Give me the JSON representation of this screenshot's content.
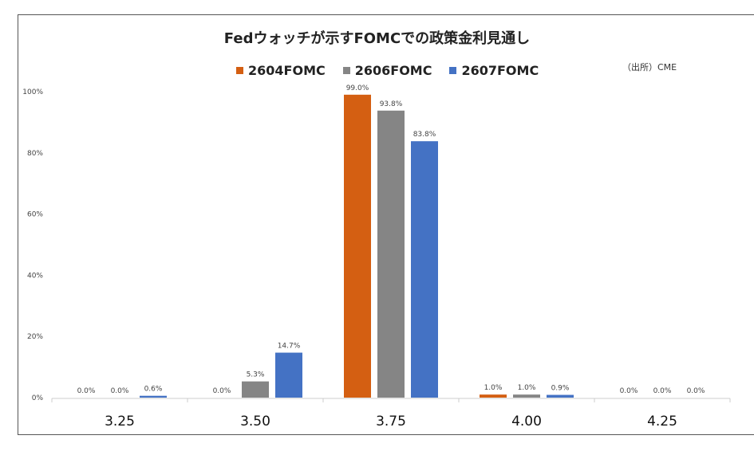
{
  "chart_data": {
    "type": "bar",
    "title": "Fedウォッチが示すFOMCでの政策金利見通し",
    "source": "（出所）CME",
    "categories": [
      "3.25",
      "3.50",
      "3.75",
      "4.00",
      "4.25"
    ],
    "series": [
      {
        "name": "2604FOMC",
        "color": "#D45F12",
        "values": [
          0.0,
          0.0,
          99.0,
          1.0,
          0.0
        ]
      },
      {
        "name": "2606FOMC",
        "color": "#858585",
        "values": [
          0.0,
          5.3,
          93.8,
          1.0,
          0.0
        ]
      },
      {
        "name": "2607FOMC",
        "color": "#4472C4",
        "values": [
          0.6,
          14.7,
          83.8,
          0.9,
          0.0
        ]
      }
    ],
    "ylim": [
      0,
      100
    ],
    "yticks": [
      "0%",
      "20%",
      "40%",
      "60%",
      "80%",
      "100%"
    ],
    "legend": "top",
    "grid": false
  }
}
